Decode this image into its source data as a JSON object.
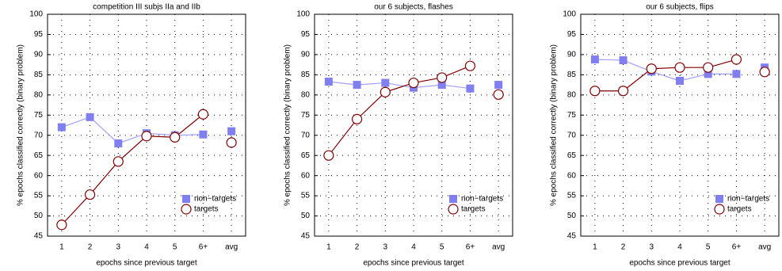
{
  "chart_data": [
    {
      "type": "line",
      "title": "competition III subjs IIa and IIb",
      "x_label": "epochs since previous target",
      "y_label": "% epochs classified correctly (binary problem)",
      "categories": [
        "1",
        "2",
        "3",
        "4",
        "5",
        "6+",
        "avg"
      ],
      "ylim": [
        45,
        100
      ],
      "yticks": [
        45,
        50,
        55,
        60,
        65,
        70,
        75,
        80,
        85,
        90,
        95,
        100
      ],
      "grid": true,
      "legend": "lower right",
      "series": [
        {
          "name": "non−targets",
          "color": "#7f7fef",
          "values": [
            72,
            74.5,
            68,
            70.5,
            70,
            70.2,
            71
          ]
        },
        {
          "name": "targets",
          "color": "#800000",
          "values": [
            47.8,
            55.3,
            63.5,
            69.8,
            69.5,
            75.2,
            68.2
          ]
        }
      ]
    },
    {
      "type": "line",
      "title": "our 6 subjects, flashes",
      "x_label": "epochs since previous target",
      "y_label": "% epochs classified correctly (binary problem)",
      "categories": [
        "1",
        "2",
        "3",
        "4",
        "5",
        "6+",
        "avg"
      ],
      "ylim": [
        45,
        100
      ],
      "yticks": [
        45,
        50,
        55,
        60,
        65,
        70,
        75,
        80,
        85,
        90,
        95,
        100
      ],
      "grid": true,
      "legend": "lower right",
      "series": [
        {
          "name": "non−targets",
          "color": "#7f7fef",
          "values": [
            83.3,
            82.5,
            83,
            81.8,
            82.5,
            81.6,
            82.5
          ]
        },
        {
          "name": "targets",
          "color": "#800000",
          "values": [
            65,
            74,
            80.7,
            83,
            84.3,
            87.2,
            80.1
          ]
        }
      ]
    },
    {
      "type": "line",
      "title": "our 6 subjects, flips",
      "x_label": "epochs since previous target",
      "y_label": "% epochs classified correctly (binary problem)",
      "categories": [
        "1",
        "2",
        "3",
        "4",
        "5",
        "6+",
        "avg"
      ],
      "ylim": [
        45,
        100
      ],
      "yticks": [
        45,
        50,
        55,
        60,
        65,
        70,
        75,
        80,
        85,
        90,
        95,
        100
      ],
      "grid": true,
      "legend": "lower right",
      "series": [
        {
          "name": "non−targets",
          "color": "#7f7fef",
          "values": [
            88.8,
            88.6,
            85.8,
            83.5,
            85.2,
            85.2,
            86.8
          ]
        },
        {
          "name": "targets",
          "color": "#800000",
          "values": [
            81,
            81,
            86.5,
            86.8,
            86.8,
            88.8,
            85.7
          ]
        }
      ]
    }
  ]
}
